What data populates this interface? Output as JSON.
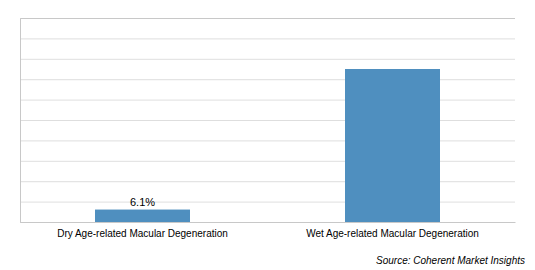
{
  "chart_data": {
    "type": "bar",
    "categories": [
      "Dry Age-related Macular Degeneration",
      "Wet Age-related Macular Degeneration"
    ],
    "values": [
      6.1,
      75.0
    ],
    "color": "#4f8fbf",
    "data_labels": true,
    "value_labels": [
      "6.1%",
      null
    ],
    "ylim": [
      0,
      100
    ],
    "yticks": [
      0,
      10,
      20,
      30,
      40,
      50,
      60,
      70,
      80,
      90,
      100
    ],
    "grid": true,
    "tick_labels": "x",
    "annotations": [
      "Source: Coherent Market Insights"
    ]
  }
}
